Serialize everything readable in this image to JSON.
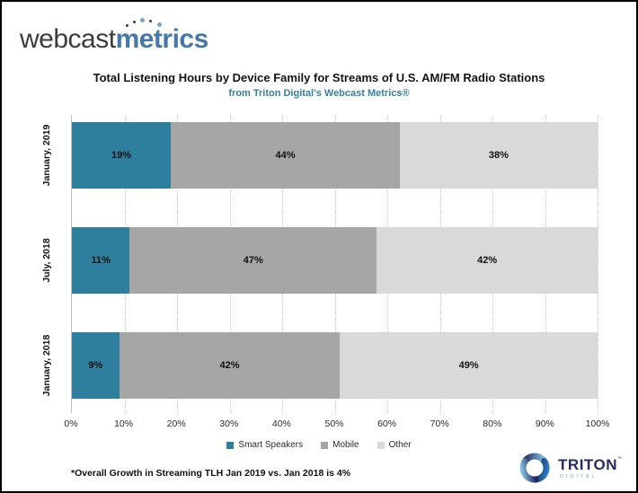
{
  "logo": {
    "part1": "webcast",
    "part2": "metrics"
  },
  "header": {
    "title": "Total Listening Hours by Device Family for Streams of U.S. AM/FM Radio Stations",
    "subtitle": "from Triton Digital's Webcast Metrics®"
  },
  "chart_data": {
    "type": "bar",
    "variant": "horizontal-stacked",
    "title": "Total Listening Hours by Device Family for Streams of U.S. AM/FM Radio Stations",
    "subtitle": "from Triton Digital's Webcast Metrics®",
    "categories": [
      "January, 2019",
      "July, 2018",
      "January, 2018"
    ],
    "series": [
      {
        "name": "Smart Speakers",
        "color": "#2E7F9D",
        "values": [
          19,
          11,
          9
        ]
      },
      {
        "name": "Mobile",
        "color": "#A6A6A6",
        "values": [
          44,
          47,
          42
        ]
      },
      {
        "name": "Other",
        "color": "#D9D9D9",
        "values": [
          38,
          42,
          49
        ]
      }
    ],
    "value_suffix": "%",
    "x_ticks": [
      "0%",
      "10%",
      "20%",
      "30%",
      "40%",
      "50%",
      "60%",
      "70%",
      "80%",
      "90%",
      "100%"
    ],
    "xlim": [
      0,
      100
    ],
    "grid": "vertical-dotted",
    "legend_position": "bottom"
  },
  "footnote": "*Overall Growth in Streaming TLH Jan 2019 vs. Jan 2018 is 4%",
  "branding": {
    "name": "TRITON",
    "tm": "™",
    "sub": "DIGITAL"
  },
  "colors": {
    "smart_speakers_teal": "#2E7F9D",
    "mobile_gray": "#A6A6A6",
    "other_gray": "#D9D9D9",
    "logo_blue": "#4478A8",
    "subtitle_teal": "#3580A5",
    "triton_navy": "#252B63",
    "triton_light_blue": "#58AEDC"
  }
}
